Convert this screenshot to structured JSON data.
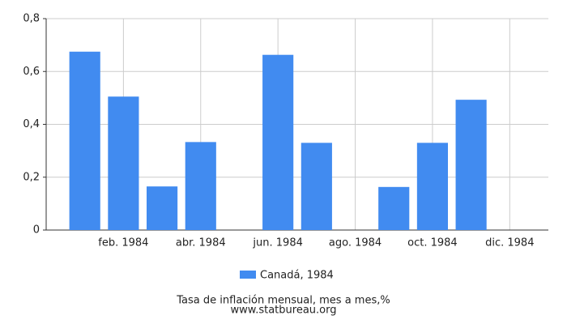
{
  "chart_data": {
    "type": "bar",
    "categories": [
      null,
      "feb. 1984",
      null,
      "abr. 1984",
      null,
      "jun. 1984",
      null,
      "ago. 1984",
      null,
      "oct. 1984",
      null,
      "dic. 1984"
    ],
    "series": [
      {
        "name": "Canadá, 1984",
        "color": "#418bf0",
        "values": [
          0.675,
          0.505,
          0.165,
          0.333,
          0,
          0.663,
          0.33,
          0,
          0.163,
          0.33,
          0.493,
          0
        ]
      }
    ],
    "ylim": [
      0,
      0.8
    ],
    "yticks": [
      0,
      {
        "value": 0.2,
        "label": "0,2"
      },
      {
        "value": 0.4,
        "label": "0,4"
      },
      {
        "value": 0.6,
        "label": "0,6"
      },
      {
        "value": 0.8,
        "label": "0,8"
      }
    ],
    "grid": true,
    "caption": "Tasa de inflación mensual, mes a mes,%",
    "source": "www.statbureau.org"
  }
}
